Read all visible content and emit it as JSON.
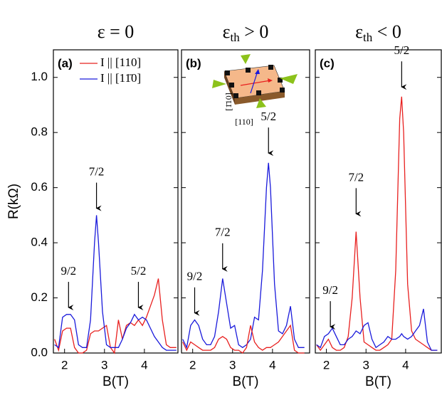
{
  "chart_data": [
    {
      "type": "line",
      "panel_label": "(a)",
      "title": "ε = 0",
      "xlabel": "B(T)",
      "ylabel": "R(kΩ)",
      "xlim": [
        1.72,
        4.84
      ],
      "ylim": [
        0,
        1.1
      ],
      "xticks": [
        2,
        3,
        4
      ],
      "yticks": [
        {
          "value": 0,
          "label": "0.0"
        },
        0.2,
        0.4,
        0.6,
        0.8,
        {
          "value": 1,
          "label": "1.0"
        }
      ],
      "x": [
        1.75,
        1.85,
        1.95,
        2.05,
        2.15,
        2.25,
        2.35,
        2.45,
        2.55,
        2.65,
        2.75,
        2.8,
        2.85,
        2.95,
        3.05,
        3.15,
        3.25,
        3.35,
        3.45,
        3.55,
        3.65,
        3.75,
        3.85,
        3.95,
        4.05,
        4.15,
        4.25,
        4.35,
        4.45,
        4.55,
        4.65,
        4.8
      ],
      "series": [
        {
          "name": "I || [110]",
          "color": "#e8201f",
          "values": [
            0.05,
            0.01,
            0.08,
            0.09,
            0.09,
            0.02,
            0.0,
            0.0,
            0.01,
            0.07,
            0.08,
            0.08,
            0.08,
            0.09,
            0.1,
            0.02,
            0.0,
            0.12,
            0.05,
            0.1,
            0.11,
            0.1,
            0.12,
            0.1,
            0.13,
            0.17,
            0.21,
            0.27,
            0.12,
            0.03,
            0.02,
            0.02
          ]
        },
        {
          "name": "I || [11̄0]",
          "color": "#1a1adb",
          "values": [
            0.03,
            0.02,
            0.13,
            0.14,
            0.14,
            0.12,
            0.03,
            0.02,
            0.02,
            0.12,
            0.4,
            0.5,
            0.4,
            0.15,
            0.03,
            0.02,
            0.02,
            0.02,
            0.05,
            0.09,
            0.11,
            0.14,
            0.12,
            0.13,
            0.12,
            0.09,
            0.06,
            0.04,
            0.02,
            0.01,
            0.01,
            0.01
          ]
        }
      ],
      "annotations": [
        {
          "text": "9/2",
          "x": 2.1,
          "y": 0.16
        },
        {
          "text": "7/2",
          "x": 2.8,
          "y": 0.52
        },
        {
          "text": "5/2",
          "x": 3.85,
          "y": 0.16
        }
      ]
    },
    {
      "type": "line",
      "panel_label": "(b)",
      "title": "ε",
      "title_subscript": "th",
      "title_suffix": " > 0",
      "xlabel": "B(T)",
      "xlim": [
        1.72,
        4.93
      ],
      "ylim": [
        0,
        1.1
      ],
      "xticks": [
        2,
        3,
        4
      ],
      "yticks": [
        0,
        0.2,
        0.4,
        0.6,
        0.8,
        1
      ],
      "inset_labels": [
        "[1̄10]",
        "[110]"
      ],
      "x": [
        1.75,
        1.85,
        1.95,
        2.05,
        2.15,
        2.25,
        2.35,
        2.45,
        2.55,
        2.65,
        2.75,
        2.85,
        2.95,
        3.05,
        3.15,
        3.25,
        3.35,
        3.45,
        3.55,
        3.65,
        3.75,
        3.85,
        3.9,
        3.95,
        4.05,
        4.15,
        4.25,
        4.35,
        4.45,
        4.55,
        4.65,
        4.8
      ],
      "series": [
        {
          "color": "#1a1adb",
          "values": [
            0.05,
            0.02,
            0.1,
            0.12,
            0.1,
            0.05,
            0.03,
            0.03,
            0.06,
            0.15,
            0.27,
            0.18,
            0.09,
            0.1,
            0.03,
            0.02,
            0.03,
            0.05,
            0.13,
            0.12,
            0.3,
            0.6,
            0.69,
            0.6,
            0.25,
            0.08,
            0.07,
            0.1,
            0.17,
            0.05,
            0.02,
            0.02
          ]
        },
        {
          "color": "#e8201f",
          "values": [
            0.04,
            0.01,
            0.04,
            0.03,
            0.02,
            0.01,
            0.01,
            0.01,
            0.02,
            0.05,
            0.06,
            0.05,
            0.02,
            0.01,
            0.01,
            0.0,
            0.02,
            0.1,
            0.04,
            0.02,
            0.01,
            0.02,
            0.02,
            0.02,
            0.03,
            0.04,
            0.06,
            0.08,
            0.1,
            0.01,
            0.0,
            0.0
          ]
        }
      ],
      "annotations": [
        {
          "text": "9/2",
          "x": 2.05,
          "y": 0.14
        },
        {
          "text": "7/2",
          "x": 2.75,
          "y": 0.3
        },
        {
          "text": "5/2",
          "x": 3.9,
          "y": 0.72
        }
      ]
    },
    {
      "type": "line",
      "panel_label": "(c)",
      "title": "ε",
      "title_subscript": "th",
      "title_suffix": " < 0",
      "xlabel": "B(T)",
      "xlim": [
        1.72,
        4.9
      ],
      "ylim": [
        0,
        1.1
      ],
      "xticks": [
        2,
        3,
        4
      ],
      "yticks": [
        0,
        0.2,
        0.4,
        0.6,
        0.8,
        1
      ],
      "x": [
        1.75,
        1.85,
        1.95,
        2.05,
        2.15,
        2.25,
        2.35,
        2.45,
        2.55,
        2.65,
        2.75,
        2.85,
        2.95,
        3.05,
        3.15,
        3.25,
        3.35,
        3.45,
        3.55,
        3.65,
        3.75,
        3.85,
        3.9,
        3.95,
        4.05,
        4.15,
        4.25,
        4.35,
        4.45,
        4.55,
        4.65,
        4.8
      ],
      "series": [
        {
          "color": "#e8201f",
          "values": [
            0.03,
            0.01,
            0.03,
            0.05,
            0.02,
            0.01,
            0.01,
            0.02,
            0.06,
            0.2,
            0.44,
            0.2,
            0.04,
            0.03,
            0.02,
            0.01,
            0.01,
            0.02,
            0.03,
            0.05,
            0.3,
            0.85,
            0.93,
            0.8,
            0.25,
            0.08,
            0.05,
            0.04,
            0.03,
            0.02,
            0.01,
            0.01
          ]
        },
        {
          "color": "#1a1adb",
          "values": [
            0.03,
            0.02,
            0.06,
            0.07,
            0.09,
            0.06,
            0.03,
            0.03,
            0.05,
            0.06,
            0.08,
            0.07,
            0.1,
            0.11,
            0.05,
            0.02,
            0.03,
            0.04,
            0.06,
            0.05,
            0.05,
            0.06,
            0.07,
            0.06,
            0.05,
            0.06,
            0.08,
            0.1,
            0.16,
            0.04,
            0.01,
            0.01
          ]
        }
      ],
      "annotations": [
        {
          "text": "9/2",
          "x": 2.1,
          "y": 0.09
        },
        {
          "text": "7/2",
          "x": 2.75,
          "y": 0.5
        },
        {
          "text": "5/2",
          "x": 3.9,
          "y": 0.96
        }
      ]
    }
  ]
}
